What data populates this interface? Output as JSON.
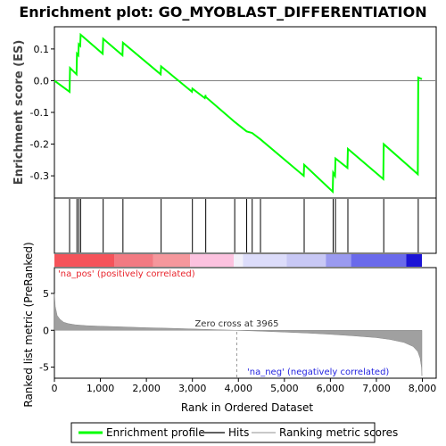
{
  "chart_data": {
    "type": "line",
    "title": "Enrichment plot: GO_MYOBLAST_DIFFERENTIATION",
    "es_panel": {
      "ylabel": "Enrichment score (ES)",
      "ylim": [
        -0.37,
        0.17
      ],
      "yticks": [
        -0.3,
        -0.2,
        -0.1,
        0.0,
        0.1
      ],
      "ytick_labels": [
        "-0.3",
        "-0.2",
        "-0.1",
        "0.0",
        "0.1"
      ],
      "series": [
        {
          "name": "Enrichment profile",
          "color": "#00ff00",
          "x": [
            0,
            330,
            340,
            480,
            490,
            520,
            530,
            560,
            570,
            1050,
            1060,
            1480,
            1490,
            2310,
            2320,
            2990,
            3000,
            3270,
            3290,
            3280,
            3920,
            4180,
            4300,
            4480,
            5420,
            5430,
            6050,
            6060,
            6100,
            6110,
            6370,
            6380,
            7150,
            7160,
            7900,
            7910,
            7990
          ],
          "y": [
            0.0,
            -0.035,
            0.04,
            0.02,
            0.085,
            0.08,
            0.115,
            0.11,
            0.145,
            0.085,
            0.132,
            0.08,
            0.12,
            0.02,
            0.045,
            -0.035,
            -0.025,
            -0.055,
            -0.045,
            -0.05,
            -0.13,
            -0.16,
            -0.165,
            -0.185,
            -0.3,
            -0.265,
            -0.35,
            -0.29,
            -0.3,
            -0.245,
            -0.275,
            -0.215,
            -0.31,
            -0.2,
            -0.295,
            0.01,
            0.005
          ]
        }
      ]
    },
    "hits": {
      "name": "Hits",
      "x": [
        330,
        490,
        530,
        570,
        1060,
        1490,
        2320,
        3000,
        3290,
        3920,
        4180,
        4300,
        4480,
        5430,
        6060,
        6110,
        6380,
        7160,
        7910
      ]
    },
    "ranking_panel": {
      "ylabel": "Ranked list metric (PreRanked)",
      "xlabel": "Rank in Ordered Dataset",
      "ylim": [
        -6.5,
        8.5
      ],
      "yticks": [
        -5,
        0,
        5
      ],
      "ytick_labels": [
        "-5",
        "0",
        "5"
      ],
      "xlim": [
        0,
        8300
      ],
      "xticks": [
        0,
        1000,
        2000,
        3000,
        4000,
        5000,
        6000,
        7000,
        8000
      ],
      "xtick_labels": [
        "0",
        "1,000",
        "2,000",
        "3,000",
        "4,000",
        "5,000",
        "6,000",
        "7,000",
        "8,000"
      ],
      "series_name": "Ranking metric scores",
      "n_genes": 7990,
      "zero_cross": 3965,
      "profile_x": [
        0,
        20,
        60,
        120,
        200,
        300,
        450,
        700,
        1000,
        1500,
        2000,
        2500,
        3000,
        3500,
        3965,
        4500,
        5000,
        5500,
        6000,
        6500,
        7000,
        7300,
        7600,
        7800,
        7900,
        7950,
        7980,
        7990
      ],
      "profile_y": [
        5.0,
        3.2,
        2.0,
        1.5,
        1.1,
        0.9,
        0.75,
        0.62,
        0.55,
        0.45,
        0.35,
        0.27,
        0.18,
        0.08,
        0.0,
        -0.12,
        -0.25,
        -0.38,
        -0.55,
        -0.75,
        -1.0,
        -1.25,
        -1.65,
        -2.2,
        -2.9,
        -3.8,
        -5.0,
        -6.2
      ]
    },
    "annotations": {
      "zero_cross_label": "Zero cross at 3965",
      "pos_label": "'na_pos' (positively correlated)",
      "neg_label": "'na_neg' (negatively correlated)"
    },
    "colorbar": {
      "segments": [
        {
          "start": 0,
          "end": 1300,
          "color": "#f5535a"
        },
        {
          "start": 1300,
          "end": 2150,
          "color": "#f27a82"
        },
        {
          "start": 2150,
          "end": 2950,
          "color": "#f5979c"
        },
        {
          "start": 2950,
          "end": 3900,
          "color": "#fcc2df"
        },
        {
          "start": 3900,
          "end": 4100,
          "color": "#f2f0fa"
        },
        {
          "start": 4100,
          "end": 5050,
          "color": "#dcdcfa"
        },
        {
          "start": 5050,
          "end": 5900,
          "color": "#c8c8f5"
        },
        {
          "start": 5900,
          "end": 6450,
          "color": "#9a9af0"
        },
        {
          "start": 6450,
          "end": 7650,
          "color": "#6a6aeb"
        },
        {
          "start": 7650,
          "end": 7990,
          "color": "#1c14d6"
        }
      ]
    },
    "legend": [
      {
        "label": "Enrichment profile",
        "color": "#00ff00"
      },
      {
        "label": "Hits",
        "color": "#606060"
      },
      {
        "label": "Ranking metric scores",
        "color": "#c8c8c8"
      }
    ]
  }
}
